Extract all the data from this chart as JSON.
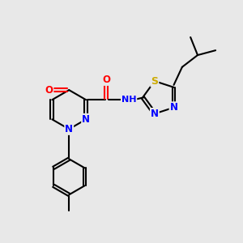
{
  "background_color": "#e8e8e8",
  "bond_color": "#000000",
  "atom_colors": {
    "N": "#0000ff",
    "O": "#ff0000",
    "S": "#ccaa00",
    "C": "#000000",
    "H": "#000000"
  },
  "figsize": [
    3.0,
    3.0
  ],
  "dpi": 100
}
